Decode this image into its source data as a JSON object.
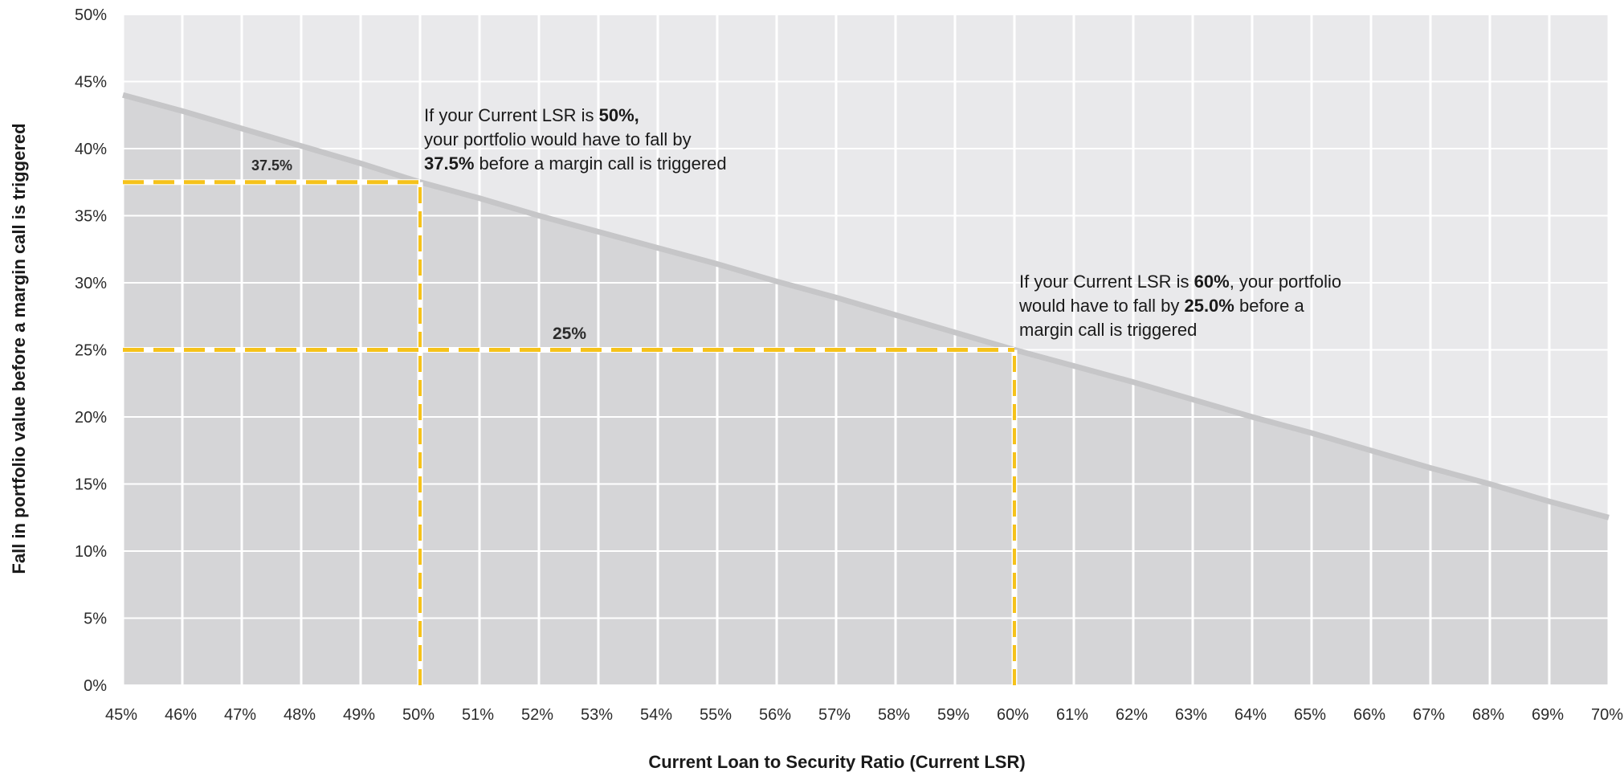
{
  "chart_data": {
    "type": "area",
    "title": "",
    "xlabel": "Current Loan to Security Ratio (Current LSR)",
    "ylabel": "Fall in portfolio value before a margin call is triggered",
    "xlim": [
      45,
      70
    ],
    "ylim": [
      0,
      50
    ],
    "x_tick_labels": [
      "45%",
      "46%",
      "47%",
      "48%",
      "49%",
      "50%",
      "51%",
      "52%",
      "53%",
      "54%",
      "55%",
      "56%",
      "57%",
      "58%",
      "59%",
      "60%",
      "61%",
      "62%",
      "63%",
      "64%",
      "65%",
      "66%",
      "67%",
      "68%",
      "69%",
      "70%"
    ],
    "y_tick_labels": [
      "0%",
      "5%",
      "10%",
      "15%",
      "20%",
      "25%",
      "30%",
      "35%",
      "40%",
      "45%",
      "50%"
    ],
    "grid": true,
    "series": [
      {
        "x": [
          45,
          46,
          47,
          48,
          49,
          50,
          51,
          52,
          53,
          54,
          55,
          56,
          57,
          58,
          59,
          60,
          61,
          62,
          63,
          64,
          65,
          66,
          67,
          68,
          69,
          70
        ],
        "values": [
          44.0,
          42.8,
          41.5,
          40.2,
          38.9,
          37.5,
          36.3,
          35.0,
          33.8,
          32.6,
          31.4,
          30.1,
          28.9,
          27.6,
          26.3,
          25.0,
          23.8,
          22.6,
          21.3,
          20.0,
          18.8,
          17.5,
          16.2,
          15.0,
          13.7,
          12.5
        ]
      }
    ],
    "reference_points": [
      {
        "x": 50,
        "y": 37.5,
        "label": "37.5%"
      },
      {
        "x": 60,
        "y": 25,
        "label": "25%"
      }
    ],
    "annotations": [
      {
        "lines": [
          [
            {
              "t": "If your Current LSR is "
            },
            {
              "t": "50%,",
              "bold": true
            }
          ],
          [
            {
              "t": "your portfolio would have to fall by"
            }
          ],
          [
            {
              "t": "37.5%",
              "bold": true
            },
            {
              "t": " before a margin call is triggered"
            }
          ]
        ]
      },
      {
        "lines": [
          [
            {
              "t": "If your Current LSR is "
            },
            {
              "t": "60%",
              "bold": true
            },
            {
              "t": ", your portfolio"
            }
          ],
          [
            {
              "t": "would have to fall by "
            },
            {
              "t": "25.0%",
              "bold": true
            },
            {
              "t": " before a"
            }
          ],
          [
            {
              "t": "margin call is triggered"
            }
          ]
        ]
      }
    ],
    "colors": {
      "plot_background": "#e9e9eb",
      "area_fill": "#d5d5d7",
      "line": "#c6c6c8",
      "grid": "#ffffff",
      "reference": "#f5c21b"
    }
  }
}
